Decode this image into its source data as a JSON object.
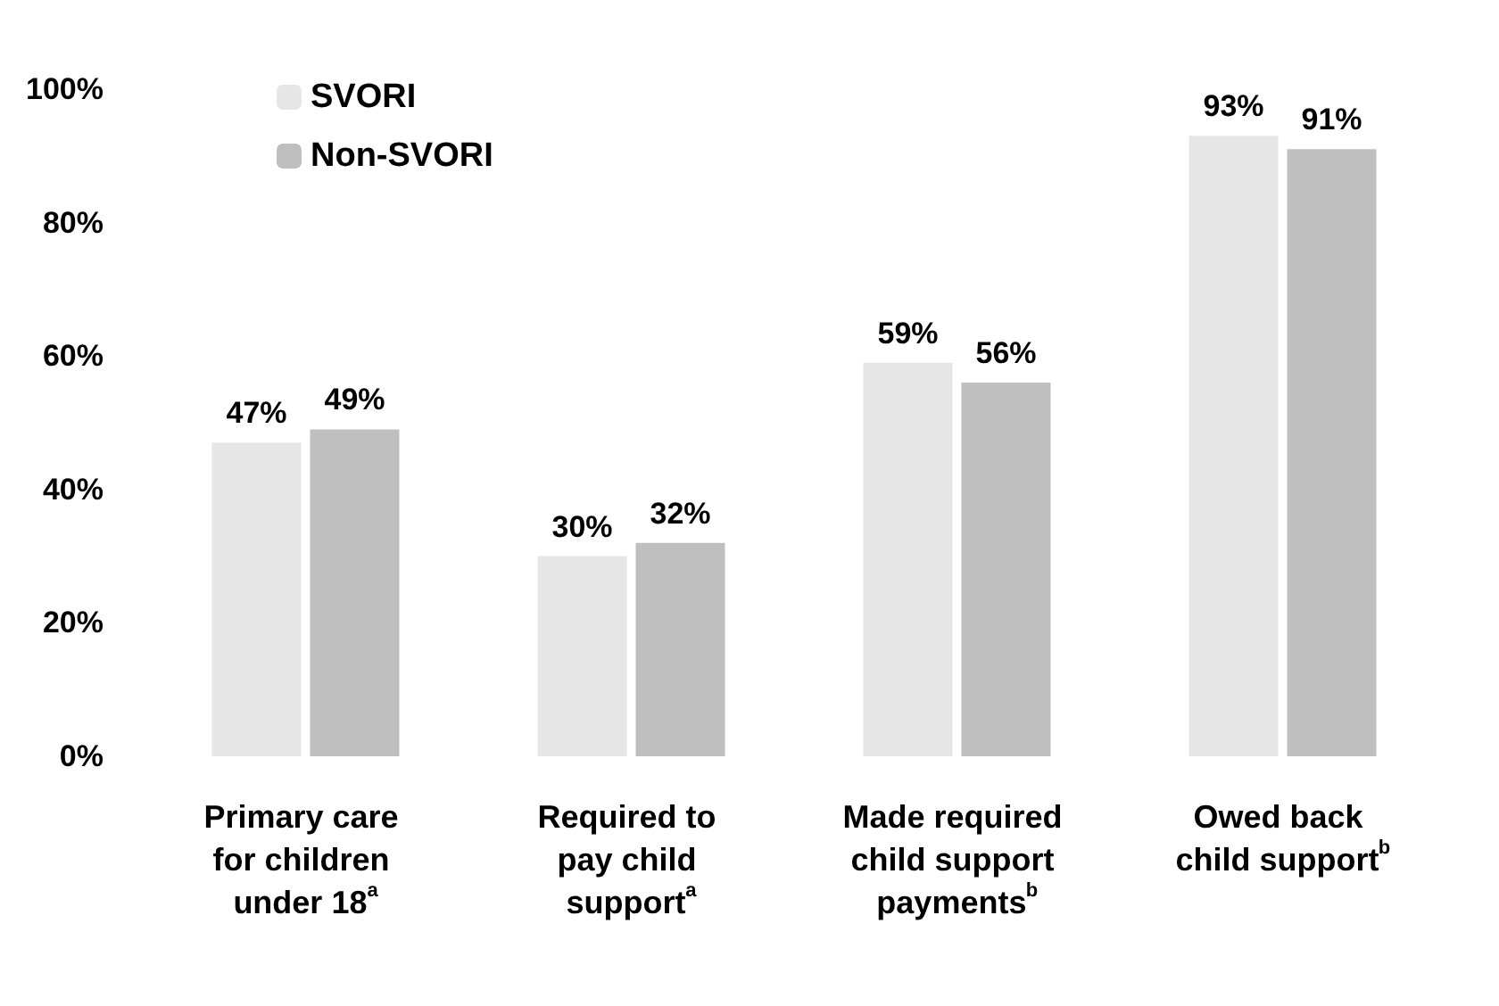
{
  "chart_data": {
    "type": "bar",
    "categories": [
      "Primary care for children under 18$^{a}$",
      "Required to pay child support$^{a}$",
      "Made required child support payments$^{b}$",
      "Owed back child support$^{b}$"
    ],
    "series": [
      {
        "name": "SVORI",
        "color": "#e6e6e6",
        "values": [
          47,
          30,
          59,
          93
        ],
        "value_labels": [
          "47%",
          "30%",
          "59%",
          "93%"
        ]
      },
      {
        "name": "Non-SVORI",
        "color": "#bfbfbf",
        "values": [
          49,
          32,
          56,
          91
        ],
        "value_labels": [
          "49%",
          "32%",
          "56%",
          "91%"
        ]
      }
    ],
    "ylim": [
      0,
      100
    ],
    "yticks": [
      {
        "value": 0,
        "label": "0%"
      },
      {
        "value": 20,
        "label": "20%"
      },
      {
        "value": 40,
        "label": "40%"
      },
      {
        "value": 60,
        "label": "60%"
      },
      {
        "value": 80,
        "label": "80%"
      },
      {
        "value": 100,
        "label": "100%"
      }
    ],
    "legend": "top left",
    "grid": false
  }
}
